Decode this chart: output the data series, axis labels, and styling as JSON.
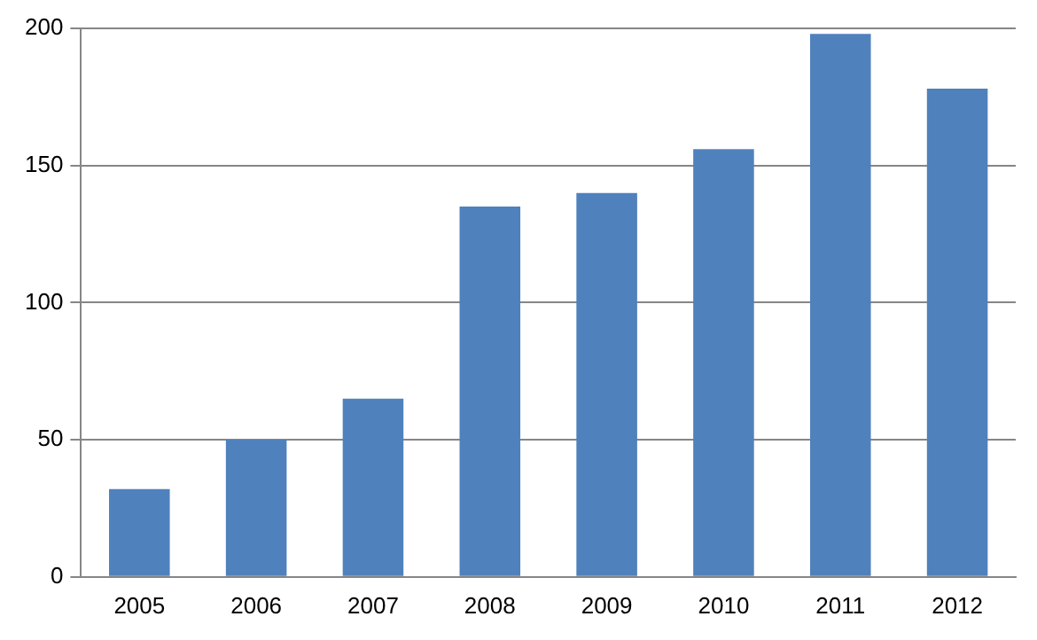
{
  "chart_data": {
    "type": "bar",
    "categories": [
      "2005",
      "2006",
      "2007",
      "2008",
      "2009",
      "2010",
      "2011",
      "2012"
    ],
    "values": [
      32,
      50,
      65,
      135,
      140,
      156,
      198,
      178
    ],
    "color": "#4f81bd",
    "ylim": [
      0,
      200
    ],
    "yticks": [
      0,
      50,
      100,
      150,
      200
    ],
    "grid": "y",
    "legend": false
  }
}
